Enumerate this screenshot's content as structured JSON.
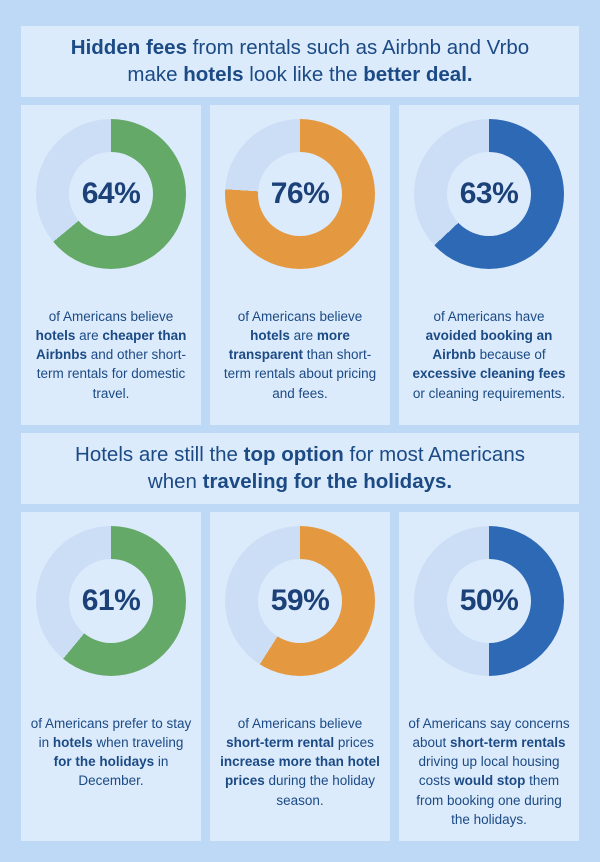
{
  "page": {
    "background": "#BED9F6",
    "panel_background": "#DCEBFB",
    "donut_track_color": "#CBDEF6",
    "text_color": "#1B4A85",
    "accent_green": "#65A968",
    "accent_orange": "#E4983F",
    "accent_blue": "#2E69B6"
  },
  "headlines": [
    {
      "text": "Hidden fees from rentals such as Airbnb and Vrbo make hotels look like the better deal.",
      "segments": [
        {
          "text": "Hidden fees",
          "bold": true
        },
        {
          "text": " from rentals such as Airbnb and Vrbo"
        },
        {
          "br": true
        },
        {
          "text": "make "
        },
        {
          "text": "hotels",
          "bold": true
        },
        {
          "text": " look like the "
        },
        {
          "text": "better deal.",
          "bold": true
        }
      ]
    },
    {
      "text": "Hotels are still the top option for most Americans when traveling for the holidays.",
      "segments": [
        {
          "text": "Hotels are still the "
        },
        {
          "text": "top option",
          "bold": true
        },
        {
          "text": " for most Americans"
        },
        {
          "br": true
        },
        {
          "text": "when "
        },
        {
          "text": "traveling for the holidays.",
          "bold": true
        }
      ]
    }
  ],
  "chart_data": [
    {
      "type": "pie",
      "variant": "donut",
      "categories": [
        "agree",
        "remainder"
      ],
      "values": [
        64,
        36
      ],
      "color": "#65A968",
      "center_label": "64%",
      "caption": "of Americans believe hotels are cheaper than Airbnbs and other short-term rentals for domestic travel.",
      "caption_segments": [
        {
          "text": "of Americans believe "
        },
        {
          "text": "hotels",
          "bold": true
        },
        {
          "text": " are "
        },
        {
          "text": "cheaper than Airbnbs",
          "bold": true
        },
        {
          "text": " and other short-term rentals for domestic travel."
        }
      ]
    },
    {
      "type": "pie",
      "variant": "donut",
      "categories": [
        "agree",
        "remainder"
      ],
      "values": [
        76,
        24
      ],
      "color": "#E4983F",
      "center_label": "76%",
      "caption": "of Americans believe hotels are more transparent than short-term rentals about pricing and fees.",
      "caption_segments": [
        {
          "text": "of Americans believe "
        },
        {
          "text": "hotels",
          "bold": true
        },
        {
          "text": " are "
        },
        {
          "text": "more transparent",
          "bold": true
        },
        {
          "text": " than short-term rentals about pricing and fees."
        }
      ]
    },
    {
      "type": "pie",
      "variant": "donut",
      "categories": [
        "agree",
        "remainder"
      ],
      "values": [
        63,
        37
      ],
      "color": "#2E69B6",
      "center_label": "63%",
      "caption": "of Americans have avoided booking an Airbnb because of excessive cleaning fees or cleaning requirements.",
      "caption_segments": [
        {
          "text": "of Americans have "
        },
        {
          "text": "avoided booking an Airbnb",
          "bold": true
        },
        {
          "text": " because of "
        },
        {
          "text": "excessive cleaning fees",
          "bold": true
        },
        {
          "text": " or cleaning requirements."
        }
      ]
    },
    {
      "type": "pie",
      "variant": "donut",
      "categories": [
        "agree",
        "remainder"
      ],
      "values": [
        61,
        39
      ],
      "color": "#65A968",
      "center_label": "61%",
      "caption": "of Americans prefer to stay in hotels when traveling for the holidays in December.",
      "caption_segments": [
        {
          "text": "of Americans prefer to stay in "
        },
        {
          "text": "hotels",
          "bold": true
        },
        {
          "text": " when traveling "
        },
        {
          "text": "for the holidays",
          "bold": true
        },
        {
          "text": " in December."
        }
      ]
    },
    {
      "type": "pie",
      "variant": "donut",
      "categories": [
        "agree",
        "remainder"
      ],
      "values": [
        59,
        41
      ],
      "color": "#E4983F",
      "center_label": "59%",
      "caption": "of Americans believe short-term rental prices increase more than hotel prices during the holiday season.",
      "caption_segments": [
        {
          "text": "of Americans believe "
        },
        {
          "text": "short-term rental",
          "bold": true
        },
        {
          "text": " prices "
        },
        {
          "text": "increase more than hotel prices",
          "bold": true
        },
        {
          "text": " during the holiday season."
        }
      ]
    },
    {
      "type": "pie",
      "variant": "donut",
      "categories": [
        "agree",
        "remainder"
      ],
      "values": [
        50,
        50
      ],
      "color": "#2E69B6",
      "center_label": "50%",
      "caption": "of Americans say concerns about short-term rentals driving up local housing costs would stop them from booking one during the holidays.",
      "caption_segments": [
        {
          "text": "of Americans say concerns about "
        },
        {
          "text": "short-term rentals",
          "bold": true
        },
        {
          "text": " driving up local housing costs "
        },
        {
          "text": "would stop",
          "bold": true
        },
        {
          "text": " them from booking one during the holidays."
        }
      ]
    }
  ]
}
